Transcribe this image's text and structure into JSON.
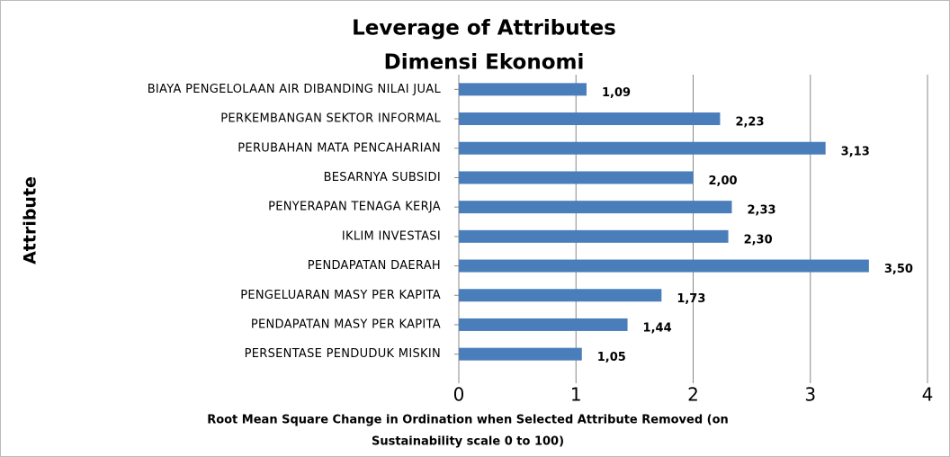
{
  "chart_data": {
    "type": "bar",
    "orientation": "horizontal",
    "title": "Leverage of Attributes",
    "subtitle": "Dimensi Ekonomi",
    "ylabel": "Attribute",
    "xlabel": [
      "Root Mean  Square Change in Ordination when Selected Attribute Removed (on",
      "Sustainability  scale 0 to 100)"
    ],
    "categories": [
      "BIAYA PENGELOLAAN AIR DIBANDING NILAI JUAL",
      "PERKEMBANGAN SEKTOR INFORMAL",
      "PERUBAHAN MATA PENCAHARIAN",
      "BESARNYA SUBSIDI",
      "PENYERAPAN TENAGA KERJA",
      "IKLIM INVESTASI",
      "PENDAPATAN DAERAH",
      "PENGELUARAN MASY PER KAPITA",
      "PENDAPATAN MASY PER KAPITA",
      "PERSENTASE PENDUDUK MISKIN"
    ],
    "values": [
      1.09,
      2.23,
      3.13,
      2.0,
      2.33,
      2.3,
      3.5,
      1.73,
      1.44,
      1.05
    ],
    "value_labels": [
      "1,09",
      "2,23",
      "3,13",
      "2,00",
      "2,33",
      "2,30",
      "3,50",
      "1,73",
      "1,44",
      "1,05"
    ],
    "color": "#4a7ebb",
    "xlim": [
      0,
      4
    ],
    "xticks": [
      0,
      1,
      2,
      3,
      4
    ],
    "grid": true
  }
}
